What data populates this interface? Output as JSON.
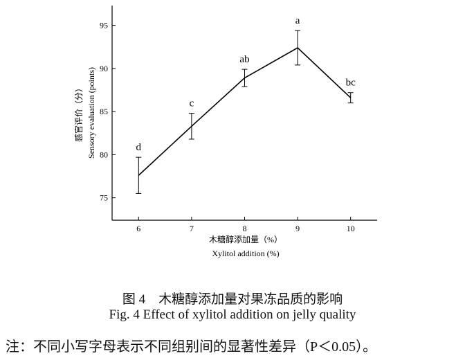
{
  "chart_data": {
    "type": "line",
    "y_label": [
      "感官评价（分）",
      "Sensory evaluation (points)"
    ],
    "x_label": [
      "木糖醇添加量（%）",
      "Xylitol addition (%)"
    ],
    "x": [
      6,
      7,
      8,
      9,
      10
    ],
    "series": [
      {
        "color": "#000000",
        "values": [
          77.6,
          83.3,
          88.9,
          92.4,
          86.6
        ],
        "errors": [
          2.1,
          1.5,
          1.0,
          2.0,
          0.6
        ]
      }
    ],
    "annotations": [
      "d",
      "c",
      "ab",
      "a",
      "bc"
    ],
    "xlim": [
      5.5,
      10.5
    ],
    "xticks": [
      6,
      7,
      8,
      9,
      10
    ],
    "ylim": [
      72.4,
      97.3
    ],
    "yticks": [
      75,
      80,
      85,
      90,
      95
    ]
  },
  "caption": {
    "cn": "图 4　木糖醇添加量对果冻品质的影响",
    "en": "Fig. 4   Effect of xylitol addition on jelly quality"
  },
  "note": "注：不同小写字母表示不同组别间的显著性差异（P＜0.05）。"
}
